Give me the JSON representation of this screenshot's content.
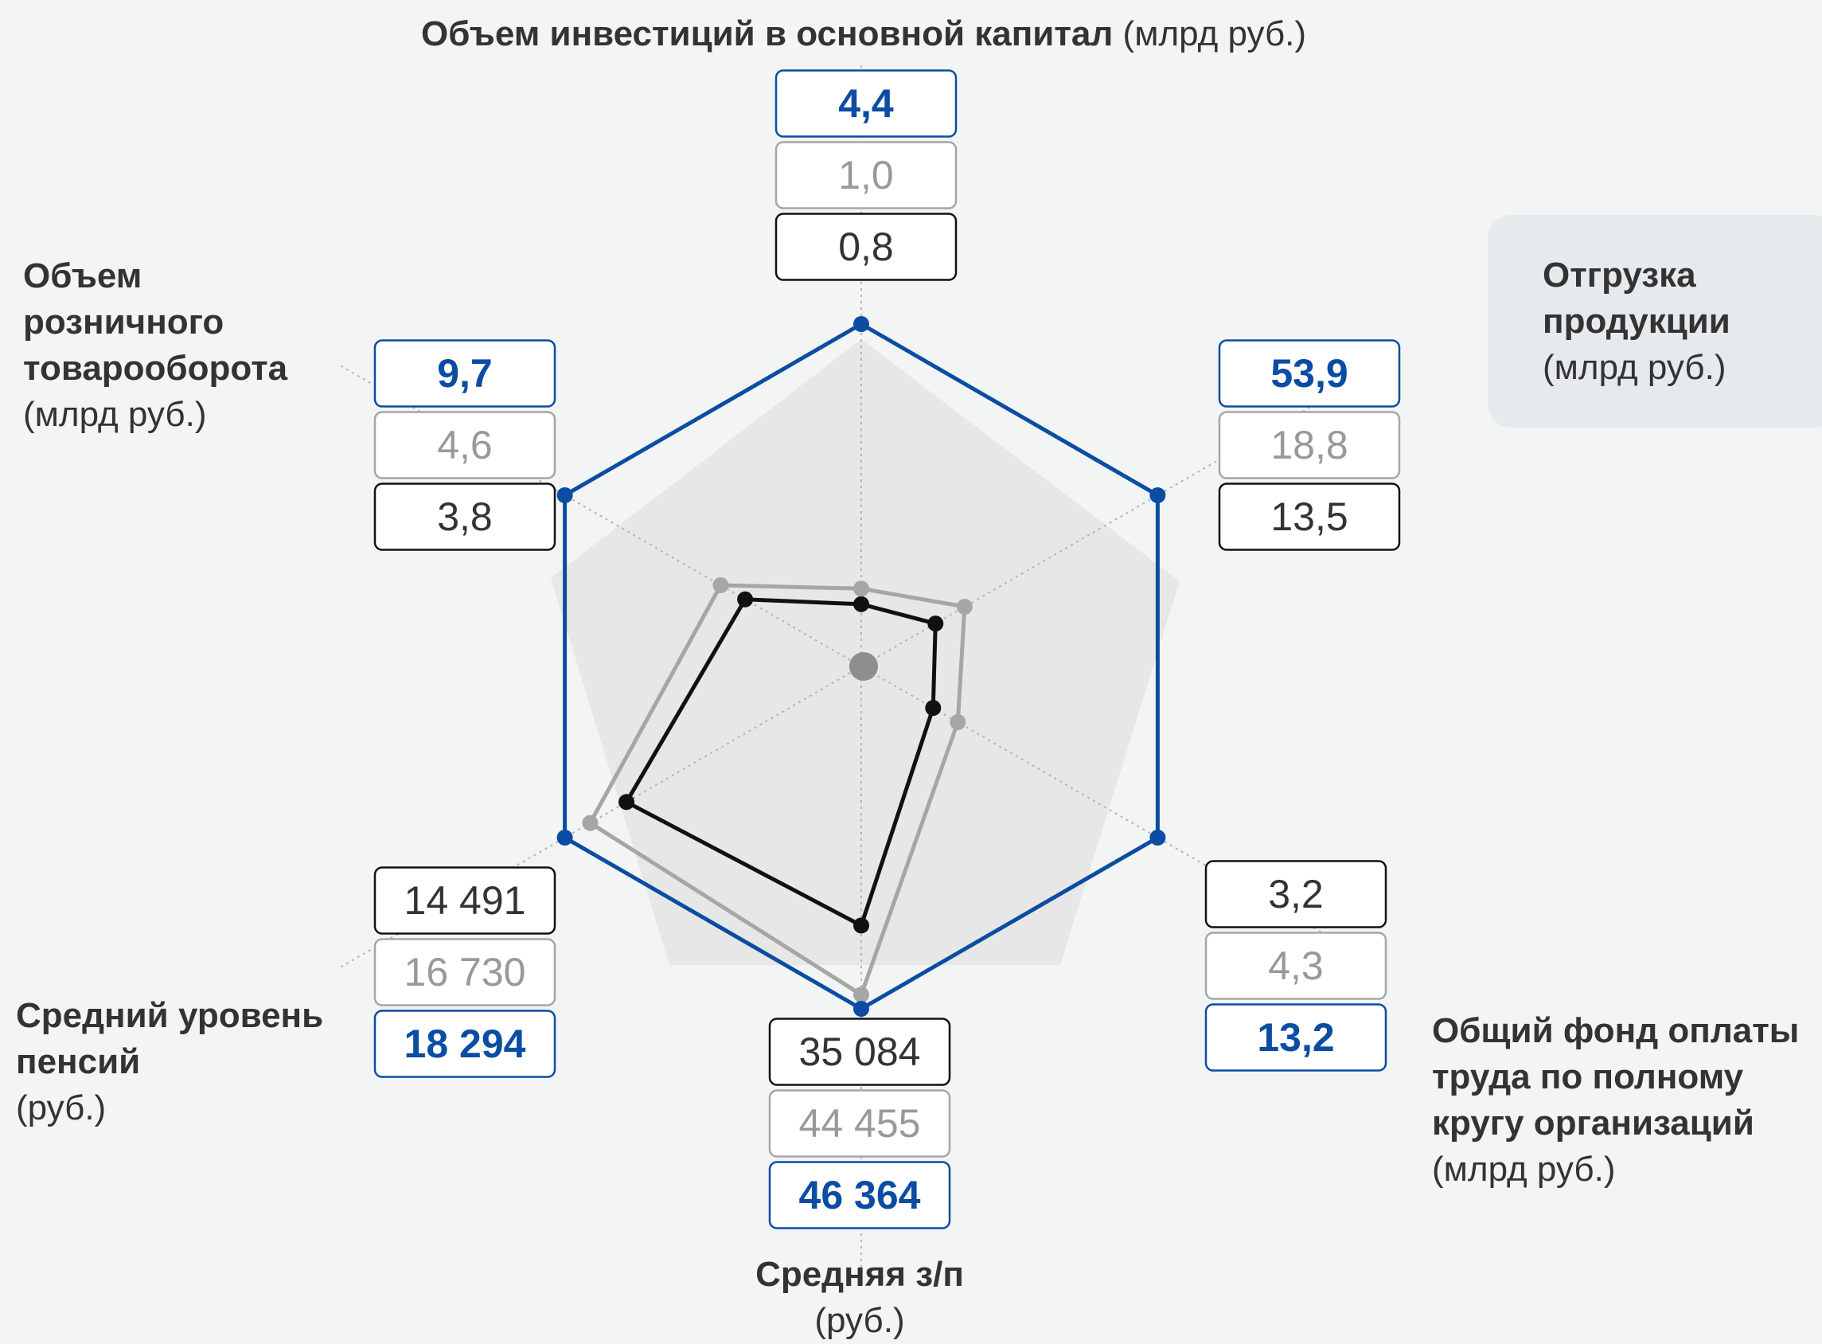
{
  "chart_data": {
    "type": "radar",
    "categories": [
      "Объем инвестиций в основной капитал",
      "Отгрузка продукции",
      "Общий фонд оплаты труда по полному кругу организаций",
      "Средняя з/п",
      "Средний уровень пенсий",
      "Объем розничного товарооборота"
    ],
    "category_units": [
      "(млрд руб.)",
      "(млрд руб.)",
      "(млрд руб.)",
      "(руб.)",
      "(руб.)",
      "(млрд руб.)"
    ],
    "series": [
      {
        "color": "#0a4da2",
        "values": [
          4.4,
          53.9,
          13.2,
          46364,
          18294,
          9.7
        ],
        "value_labels": [
          "4,4",
          "53,9",
          "13,2",
          "46 364",
          "18 294",
          "9,7"
        ]
      },
      {
        "color": "#a6a6a6",
        "values": [
          1.0,
          18.8,
          4.3,
          44455,
          16730,
          4.6
        ],
        "value_labels": [
          "1,0",
          "18,8",
          "4,3",
          "44 455",
          "16 730",
          "4,6"
        ]
      },
      {
        "color": "#111111",
        "values": [
          0.8,
          13.5,
          3.2,
          35084,
          14491,
          3.8
        ],
        "value_labels": [
          "0,8",
          "13,5",
          "3,2",
          "35 084",
          "14 491",
          "3,8"
        ]
      }
    ]
  }
}
